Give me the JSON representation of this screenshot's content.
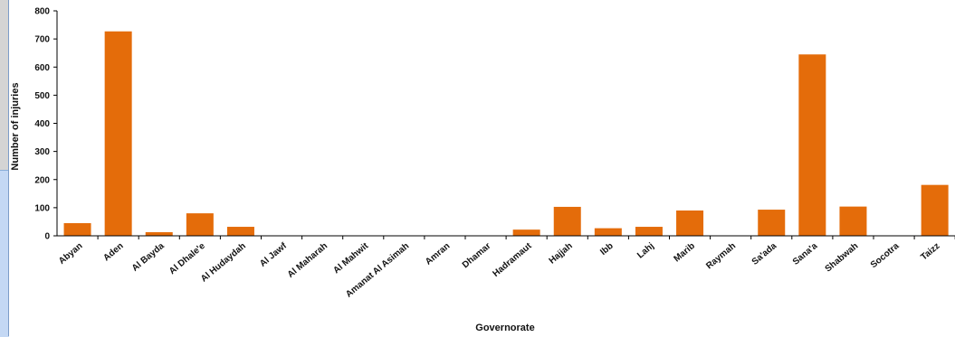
{
  "chart_data": {
    "type": "bar",
    "xlabel": "Governorate",
    "ylabel": "Number of injuries",
    "ylim": [
      0,
      800
    ],
    "yticks": [
      0,
      100,
      200,
      300,
      400,
      500,
      600,
      700,
      800
    ],
    "grid": false,
    "legend": "none",
    "bar_color": "#E46C0A",
    "categories": [
      "Abyan",
      "Aden",
      "Al Bayda",
      "Al Dhale'e",
      "Al Hudaydah",
      "Al Jawf",
      "Al Maharah",
      "Al Mahwit",
      "Amanat Al Asimah",
      "Amran",
      "Dhamar",
      "Hadramaut",
      "Hajjah",
      "Ibb",
      "Lahj",
      "Marib",
      "Raymah",
      "Sa'ada",
      "Sana'a",
      "Shabwah",
      "Socotra",
      "Taizz"
    ],
    "values": [
      45,
      727,
      13,
      80,
      32,
      0,
      0,
      0,
      0,
      0,
      0,
      22,
      103,
      27,
      32,
      90,
      0,
      93,
      645,
      104,
      0,
      181
    ]
  }
}
